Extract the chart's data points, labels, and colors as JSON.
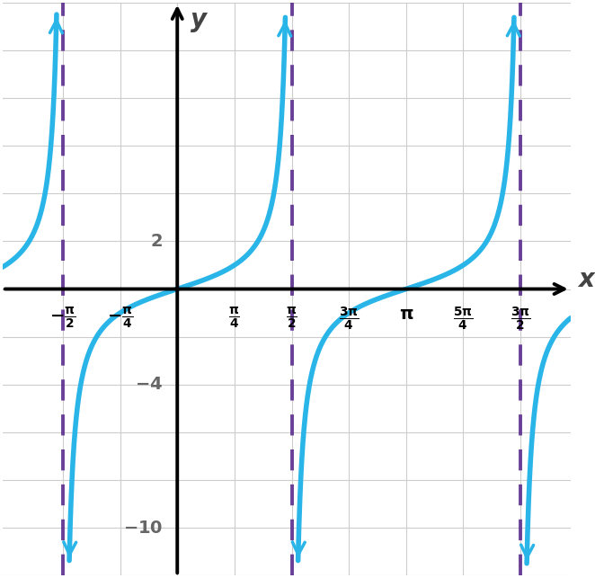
{
  "title": "",
  "xlabel": "x",
  "ylabel": "y",
  "xlim": [
    -2.4,
    5.4
  ],
  "ylim": [
    -12,
    12
  ],
  "y_axis_position": 0,
  "asymptotes": [
    -1.5707963267948966,
    1.5707963267948966,
    4.71238898038469
  ],
  "curve_color": "#29B5E8",
  "asymptote_color": "#5B2D8E",
  "curve_linewidth": 4.0,
  "asymptote_linewidth": 2.8,
  "grid_color": "#CCCCCC",
  "axis_color": "#000000",
  "tick_labels_x": [
    [
      "-\\frac{\\pi}{2}",
      -1.5707963267948966
    ],
    [
      "-\\frac{\\pi}{4}",
      -0.7853981633974483
    ],
    [
      "\\frac{\\pi}{4}",
      0.7853981633974483
    ],
    [
      "\\frac{\\pi}{2}",
      1.5707963267948966
    ],
    [
      "\\frac{3\\pi}{4}",
      2.356194490192345
    ],
    [
      "\\pi",
      3.141592653589793
    ],
    [
      "\\frac{5\\pi}{4}",
      3.9269908169872414
    ],
    [
      "\\frac{3\\pi}{2}",
      4.71238898038469
    ]
  ],
  "tick_labels_y": [
    [
      "2",
      2
    ],
    [
      "-4",
      -4
    ],
    [
      "-10",
      -10
    ]
  ],
  "figsize": [
    6.62,
    6.43
  ],
  "dpi": 100,
  "background_color": "#FFFFFF",
  "grid_minor_color": "#E0E0E0"
}
